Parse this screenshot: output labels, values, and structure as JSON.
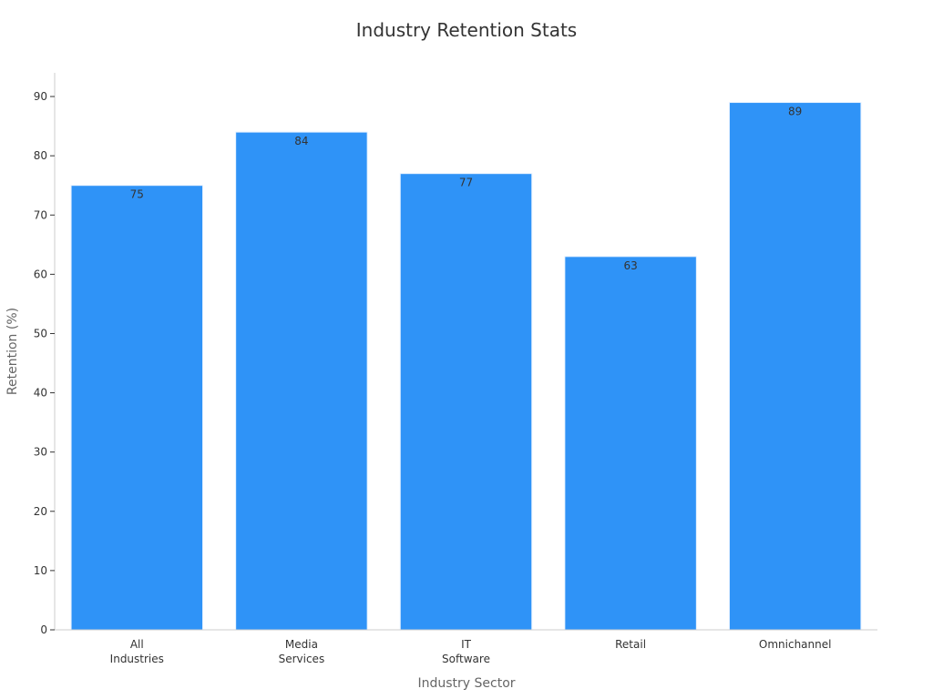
{
  "chart_data": {
    "type": "bar",
    "title": "Industry Retention Stats",
    "xlabel": "Industry Sector",
    "ylabel": "Retention (%)",
    "categories": [
      [
        "All",
        "Industries"
      ],
      [
        "Media",
        "Services"
      ],
      [
        "IT",
        "Software"
      ],
      [
        "Retail"
      ],
      [
        "Omnichannel"
      ]
    ],
    "values": [
      75,
      84,
      77,
      63,
      89
    ],
    "ylim": [
      0,
      94
    ],
    "yticks": [
      0,
      10,
      20,
      30,
      40,
      50,
      60,
      70,
      80,
      90
    ],
    "grid": false,
    "bar_color": "#2f93f7",
    "bar_edge_color": "#e6f2ff"
  }
}
